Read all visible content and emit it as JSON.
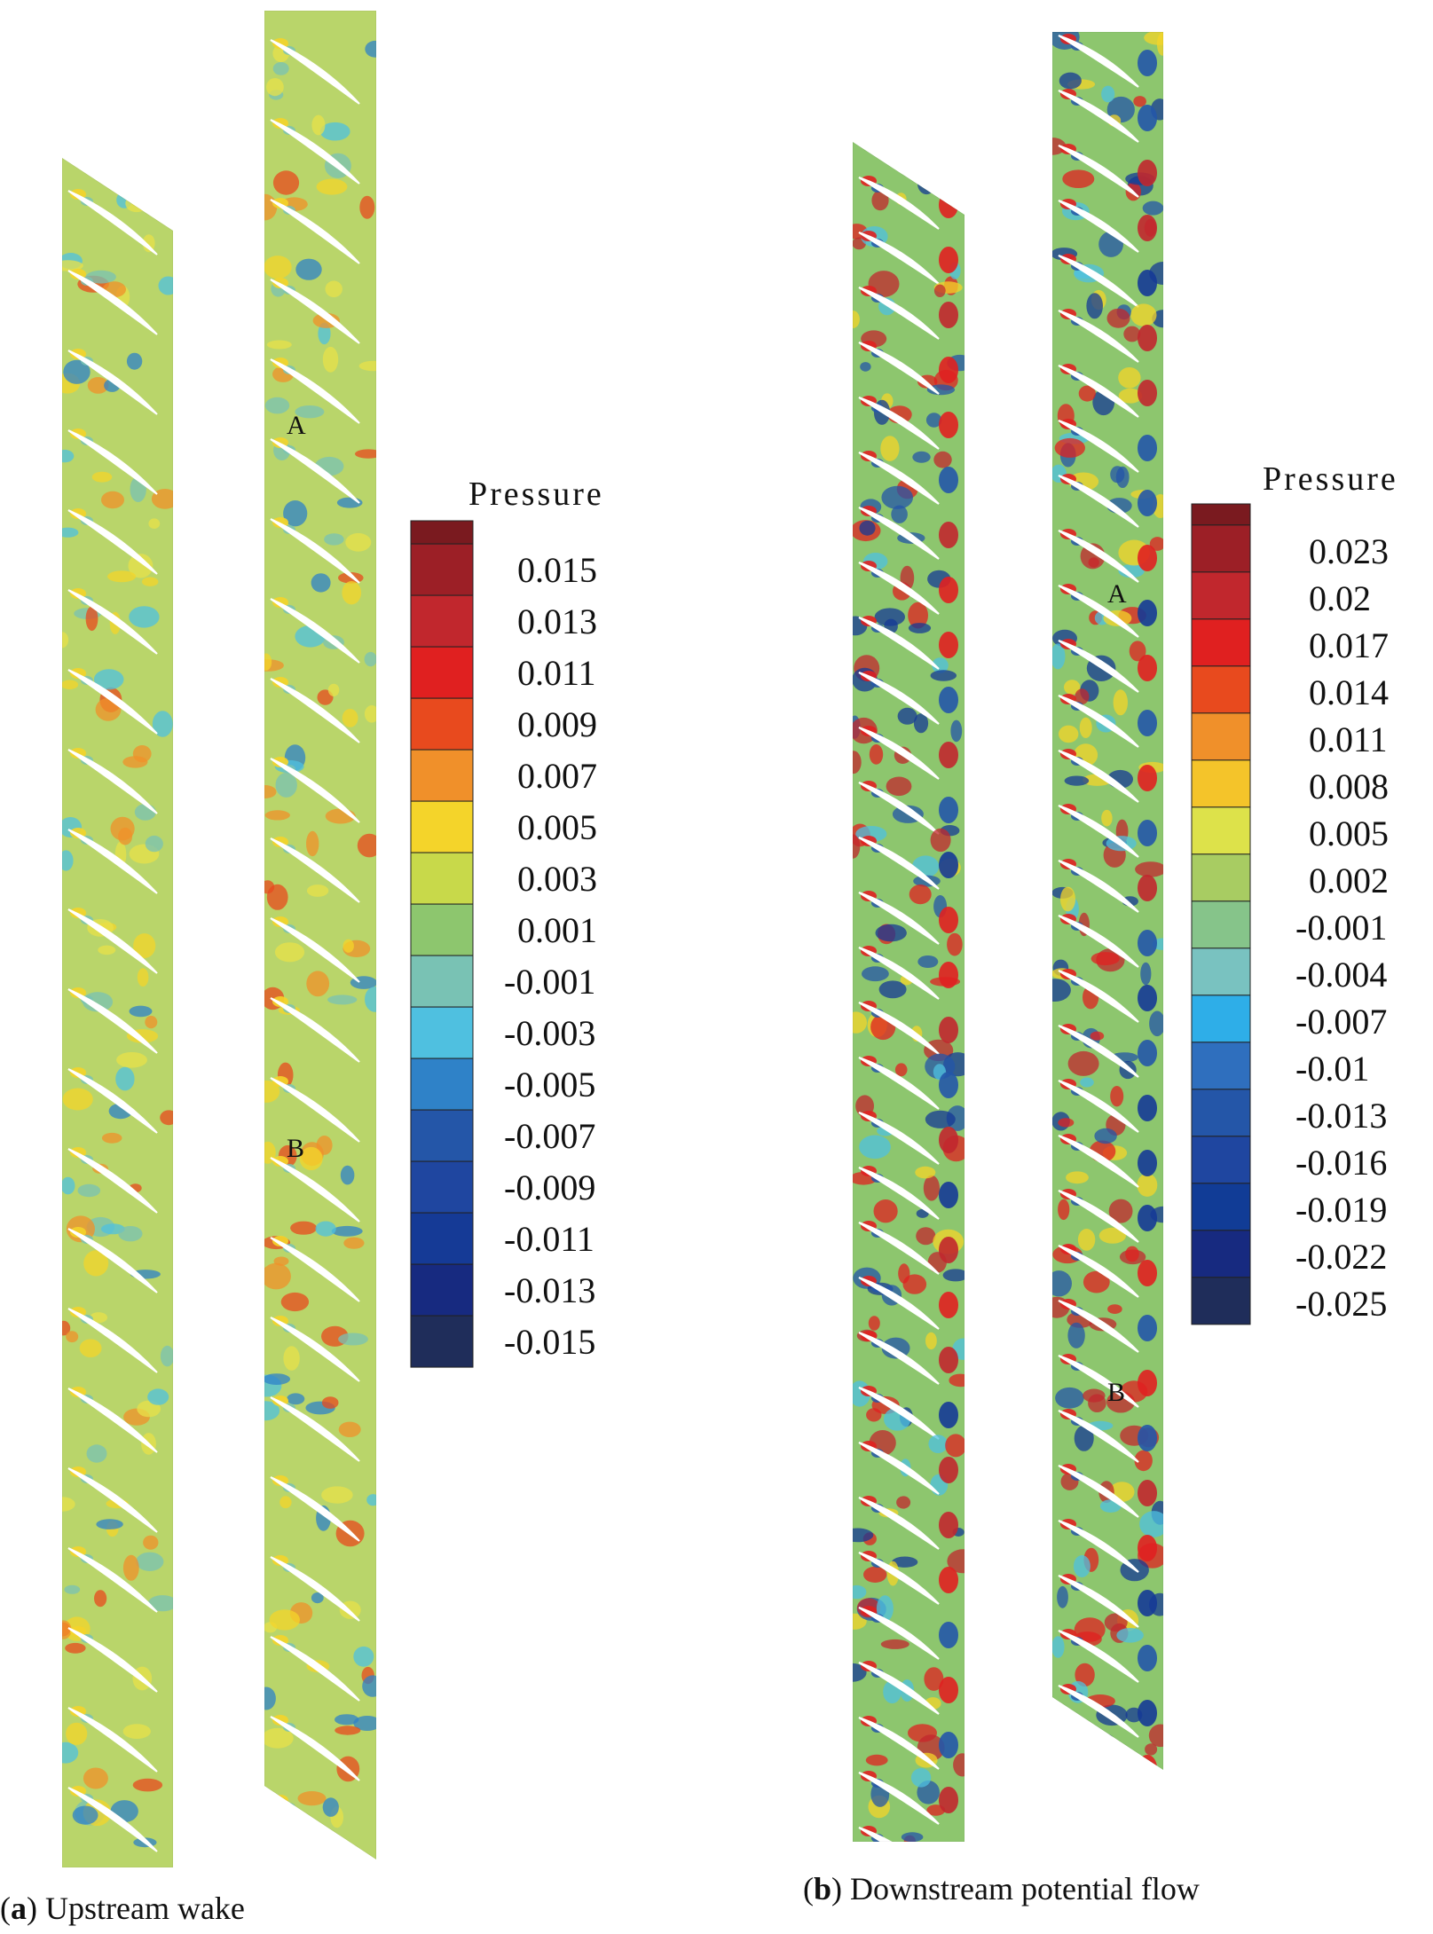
{
  "panels": [
    {
      "id": "a",
      "caption": {
        "open": "(",
        "letter": "a",
        "text": ") Upstream wake"
      },
      "markers": [
        "A",
        "B"
      ],
      "legend": {
        "title": "Pressure",
        "colors": [
          "#7a1a1f",
          "#9c1f26",
          "#c1272d",
          "#e02020",
          "#e84a1e",
          "#f0902a",
          "#f4d42a",
          "#c8d94a",
          "#8dc66e",
          "#79c2b4",
          "#4fc0e0",
          "#2f82c8",
          "#2456a8",
          "#1f46a0",
          "#153a96",
          "#172a80",
          "#1f2d5a"
        ],
        "labels": [
          "0.015",
          "0.013",
          "0.011",
          "0.009",
          "0.007",
          "0.005",
          "0.003",
          "0.001",
          "-0.001",
          "-0.003",
          "-0.005",
          "-0.007",
          "-0.009",
          "-0.011",
          "-0.013",
          "-0.015"
        ]
      },
      "field": {
        "background": "#b9d56a",
        "patch_colors": [
          "#f4d42a",
          "#e8e04a",
          "#79c2b4",
          "#4fc0e0",
          "#e84a1e",
          "#2f82c8",
          "#f0902a"
        ]
      }
    },
    {
      "id": "b",
      "caption": {
        "open": "(",
        "letter": "b",
        "text": ") Downstream potential flow"
      },
      "markers": [
        "A",
        "B"
      ],
      "legend": {
        "title": "Pressure",
        "colors": [
          "#7a1a1f",
          "#9c1f26",
          "#c1272d",
          "#e02020",
          "#e84a1e",
          "#f0902a",
          "#f4c42a",
          "#dde24a",
          "#a8cc62",
          "#86c48a",
          "#79c2c0",
          "#2eaee8",
          "#2f6fbe",
          "#2456a8",
          "#1f46a0",
          "#113c96",
          "#172a80",
          "#1f2d5a"
        ],
        "labels": [
          "0.023",
          "0.02",
          "0.017",
          "0.014",
          "0.011",
          "0.008",
          "0.005",
          "0.002",
          "-0.001",
          "-0.004",
          "-0.007",
          "-0.01",
          "-0.013",
          "-0.016",
          "-0.019",
          "-0.022",
          "-0.025"
        ]
      },
      "field": {
        "background": "#8dc66e",
        "patch_colors": [
          "#e02020",
          "#c1272d",
          "#2456a8",
          "#153a96",
          "#4fc0e0",
          "#f4d42a"
        ]
      }
    }
  ]
}
